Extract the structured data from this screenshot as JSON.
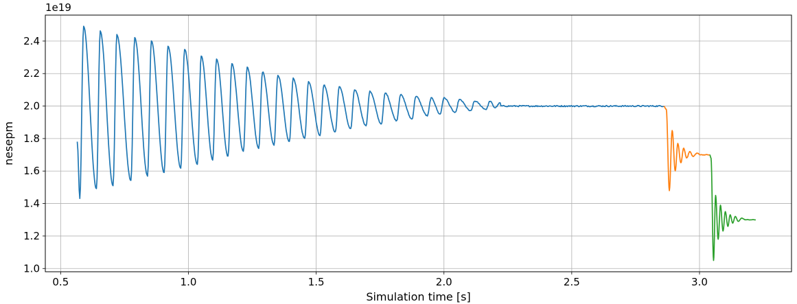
{
  "chart_data": {
    "type": "line",
    "title": "",
    "xlabel": "Simulation time [s]",
    "ylabel": "nesepm",
    "y_offset_label": "1e19",
    "y_scale_factor": 1e+19,
    "xlim": [
      0.44,
      3.36
    ],
    "ylim": [
      0.98,
      2.56
    ],
    "xticks": [
      0.5,
      1.0,
      1.5,
      2.0,
      2.5,
      3.0
    ],
    "xtick_labels": [
      "0.5",
      "1.0",
      "1.5",
      "2.0",
      "2.5",
      "3.0"
    ],
    "yticks": [
      1.0,
      1.2,
      1.4,
      1.6,
      1.8,
      2.0,
      2.2,
      2.4
    ],
    "ytick_labels": [
      "1.0",
      "1.2",
      "1.4",
      "1.6",
      "1.8",
      "2.0",
      "2.2",
      "2.4"
    ],
    "grid": true,
    "legend": "none",
    "series": [
      {
        "color": "#1f77b4",
        "t_start": 0.565,
        "t_end": 2.86,
        "start_value": 1.78,
        "end_value": 2.0,
        "peaks": [
          [
            0.59,
            2.49
          ],
          [
            0.655,
            2.46
          ],
          [
            0.72,
            2.44
          ],
          [
            0.79,
            2.42
          ],
          [
            0.855,
            2.4
          ],
          [
            0.92,
            2.37
          ],
          [
            0.985,
            2.35
          ],
          [
            1.05,
            2.31
          ],
          [
            1.11,
            2.29
          ],
          [
            1.17,
            2.26
          ],
          [
            1.23,
            2.24
          ],
          [
            1.29,
            2.21
          ],
          [
            1.35,
            2.19
          ],
          [
            1.41,
            2.17
          ],
          [
            1.47,
            2.15
          ],
          [
            1.53,
            2.13
          ],
          [
            1.59,
            2.12
          ],
          [
            1.65,
            2.1
          ],
          [
            1.71,
            2.09
          ],
          [
            1.77,
            2.08
          ],
          [
            1.83,
            2.07
          ],
          [
            1.89,
            2.06
          ],
          [
            1.95,
            2.05
          ],
          [
            2.0,
            2.05
          ],
          [
            2.06,
            2.04
          ],
          [
            2.12,
            2.03
          ],
          [
            2.18,
            2.03
          ],
          [
            2.22,
            2.02
          ]
        ],
        "troughs": [
          [
            0.575,
            1.43
          ],
          [
            0.64,
            1.49
          ],
          [
            0.705,
            1.51
          ],
          [
            0.775,
            1.54
          ],
          [
            0.84,
            1.57
          ],
          [
            0.905,
            1.59
          ],
          [
            0.97,
            1.62
          ],
          [
            1.035,
            1.64
          ],
          [
            1.095,
            1.67
          ],
          [
            1.155,
            1.69
          ],
          [
            1.215,
            1.72
          ],
          [
            1.275,
            1.74
          ],
          [
            1.335,
            1.76
          ],
          [
            1.395,
            1.78
          ],
          [
            1.455,
            1.8
          ],
          [
            1.515,
            1.82
          ],
          [
            1.575,
            1.84
          ],
          [
            1.635,
            1.86
          ],
          [
            1.695,
            1.88
          ],
          [
            1.755,
            1.89
          ],
          [
            1.815,
            1.91
          ],
          [
            1.875,
            1.92
          ],
          [
            1.935,
            1.94
          ],
          [
            1.985,
            1.95
          ],
          [
            2.045,
            1.96
          ],
          [
            2.105,
            1.97
          ],
          [
            2.165,
            1.98
          ],
          [
            2.2,
            1.99
          ]
        ]
      },
      {
        "color": "#ff7f0e",
        "t_start": 2.86,
        "t_end": 3.04,
        "start_value": 2.0,
        "end_value": 1.7,
        "extrema": [
          [
            2.87,
            1.98
          ],
          [
            2.882,
            1.48
          ],
          [
            2.893,
            1.85
          ],
          [
            2.905,
            1.6
          ],
          [
            2.915,
            1.77
          ],
          [
            2.927,
            1.65
          ],
          [
            2.938,
            1.74
          ],
          [
            2.95,
            1.68
          ],
          [
            2.962,
            1.72
          ],
          [
            2.975,
            1.69
          ],
          [
            2.99,
            1.71
          ],
          [
            3.005,
            1.7
          ]
        ]
      },
      {
        "color": "#2ca02c",
        "t_start": 3.04,
        "t_end": 3.22,
        "start_value": 1.7,
        "end_value": 1.3,
        "extrema": [
          [
            3.045,
            1.68
          ],
          [
            3.055,
            1.05
          ],
          [
            3.063,
            1.45
          ],
          [
            3.073,
            1.18
          ],
          [
            3.082,
            1.39
          ],
          [
            3.092,
            1.23
          ],
          [
            3.101,
            1.35
          ],
          [
            3.111,
            1.26
          ],
          [
            3.12,
            1.33
          ],
          [
            3.13,
            1.28
          ],
          [
            3.14,
            1.32
          ],
          [
            3.152,
            1.29
          ],
          [
            3.165,
            1.31
          ],
          [
            3.18,
            1.3
          ]
        ]
      }
    ]
  }
}
